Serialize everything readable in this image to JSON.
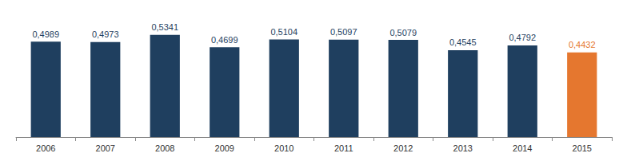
{
  "chart_data": {
    "type": "bar",
    "categories": [
      "2006",
      "2007",
      "2008",
      "2009",
      "2010",
      "2011",
      "2012",
      "2013",
      "2014",
      "2015"
    ],
    "values": [
      0.4989,
      0.4973,
      0.5341,
      0.4699,
      0.5104,
      0.5097,
      0.5079,
      0.4545,
      0.4792,
      0.4432
    ],
    "value_labels": [
      "0,4989",
      "0,4973",
      "0,5341",
      "0,4699",
      "0,5104",
      "0,5097",
      "0,5079",
      "0,4545",
      "0,4792",
      "0,4432"
    ],
    "colors": [
      "#1f3f5f",
      "#1f3f5f",
      "#1f3f5f",
      "#1f3f5f",
      "#1f3f5f",
      "#1f3f5f",
      "#1f3f5f",
      "#1f3f5f",
      "#1f3f5f",
      "#e5772f"
    ],
    "ylim": [
      0,
      0.6
    ],
    "grid": false,
    "data_labels": true,
    "tick_labels": "x"
  }
}
